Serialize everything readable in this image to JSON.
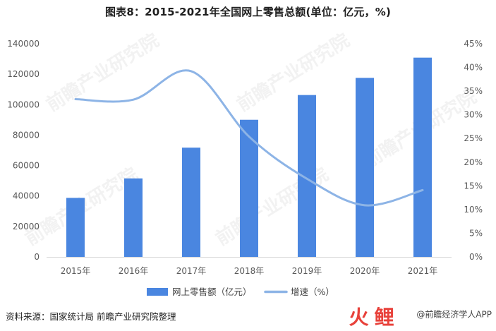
{
  "title": "图表8：2015-2021年全国网上零售总额(单位：亿元，%)",
  "source": "资料来源：国家统计局 前瞻产业研究院整理",
  "watermark": "前瞻产业研究院",
  "brand": {
    "text": "@前瞻经济学人APP"
  },
  "chart_data": {
    "type": "bar",
    "categories": [
      "2015年",
      "2016年",
      "2017年",
      "2018年",
      "2019年",
      "2020年",
      "2021年"
    ],
    "series": [
      {
        "name": "网上零售额（亿元）",
        "type": "bar",
        "axis": "left",
        "color": "#4a86e0",
        "values": [
          38773,
          51556,
          71751,
          90065,
          106324,
          117601,
          130884
        ]
      },
      {
        "name": "增速（%）",
        "type": "line",
        "axis": "right",
        "color": "#8db4e6",
        "values": [
          33.3,
          33.2,
          39.2,
          25.4,
          16.5,
          10.9,
          14.1
        ]
      }
    ],
    "y_left": {
      "min": 0,
      "max": 140000,
      "step": 20000
    },
    "y_right": {
      "min": 0,
      "max": 45,
      "step": 5,
      "suffix": "%"
    },
    "legend": {
      "position": "bottom"
    },
    "grid": false
  }
}
